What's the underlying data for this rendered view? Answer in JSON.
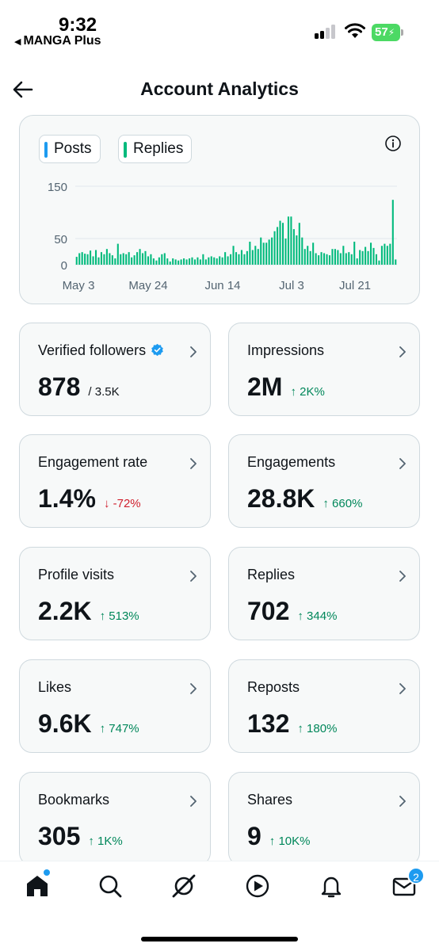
{
  "status_bar": {
    "time": "9:32",
    "back_app": "MANGA Plus",
    "battery": "57"
  },
  "header": {
    "title": "Account Analytics",
    "back_icon": "arrow-left-icon"
  },
  "chart": {
    "legend": [
      {
        "label": "Posts",
        "color": "#1d9bf0"
      },
      {
        "label": "Replies",
        "color": "#00ba7c"
      }
    ],
    "info_icon": "info-icon"
  },
  "chart_data": {
    "type": "bar",
    "title": "",
    "xlabel": "",
    "ylabel": "",
    "ylim": [
      0,
      150
    ],
    "y_ticks": [
      0,
      50,
      150
    ],
    "x_tick_labels": [
      "May 3",
      "May 24",
      "Jun 14",
      "Jul 3",
      "Jul 21"
    ],
    "series": [
      {
        "name": "Replies",
        "color": "#00ba7c",
        "values": [
          15,
          22,
          24,
          21,
          20,
          27,
          16,
          28,
          14,
          24,
          20,
          30,
          22,
          18,
          12,
          40,
          20,
          22,
          20,
          24,
          14,
          18,
          24,
          30,
          22,
          26,
          16,
          20,
          12,
          8,
          14,
          20,
          22,
          12,
          6,
          12,
          10,
          8,
          10,
          12,
          10,
          12,
          14,
          10,
          14,
          10,
          20,
          10,
          14,
          16,
          14,
          12,
          16,
          14,
          24,
          16,
          20,
          36,
          24,
          20,
          28,
          20,
          26,
          44,
          28,
          36,
          30,
          52,
          42,
          42,
          48,
          52,
          64,
          72,
          84,
          80,
          50,
          92,
          92,
          68,
          56,
          80,
          52,
          30,
          36,
          26,
          42,
          22,
          18,
          24,
          22,
          20,
          18,
          30,
          30,
          28,
          22,
          36,
          22,
          24,
          20,
          44,
          12,
          28,
          26,
          34,
          26,
          42,
          32,
          20,
          8,
          36,
          40,
          36,
          40,
          124,
          10
        ]
      }
    ]
  },
  "stats": [
    {
      "label": "Verified followers",
      "value": "878",
      "total": "/ 3.5K",
      "change": "",
      "direction": "none",
      "verified": true
    },
    {
      "label": "Impressions",
      "value": "2M",
      "total": "",
      "change": "↑ 2K%",
      "direction": "up",
      "verified": false
    },
    {
      "label": "Engagement rate",
      "value": "1.4%",
      "total": "",
      "change": "↓ -72%",
      "direction": "down",
      "verified": false
    },
    {
      "label": "Engagements",
      "value": "28.8K",
      "total": "",
      "change": "↑ 660%",
      "direction": "up",
      "verified": false
    },
    {
      "label": "Profile visits",
      "value": "2.2K",
      "total": "",
      "change": "↑ 513%",
      "direction": "up",
      "verified": false
    },
    {
      "label": "Replies",
      "value": "702",
      "total": "",
      "change": "↑ 344%",
      "direction": "up",
      "verified": false
    },
    {
      "label": "Likes",
      "value": "9.6K",
      "total": "",
      "change": "↑ 747%",
      "direction": "up",
      "verified": false
    },
    {
      "label": "Reposts",
      "value": "132",
      "total": "",
      "change": "↑ 180%",
      "direction": "up",
      "verified": false
    },
    {
      "label": "Bookmarks",
      "value": "305",
      "total": "",
      "change": "↑ 1K%",
      "direction": "up",
      "verified": false
    },
    {
      "label": "Shares",
      "value": "9",
      "total": "",
      "change": "↑ 10K%",
      "direction": "up",
      "verified": false
    }
  ],
  "bottom_nav": {
    "items": [
      {
        "icon": "home-icon"
      },
      {
        "icon": "search-icon"
      },
      {
        "icon": "grok-icon"
      },
      {
        "icon": "video-icon"
      },
      {
        "icon": "bell-icon"
      },
      {
        "icon": "mail-icon"
      }
    ],
    "messages_badge": "2"
  }
}
